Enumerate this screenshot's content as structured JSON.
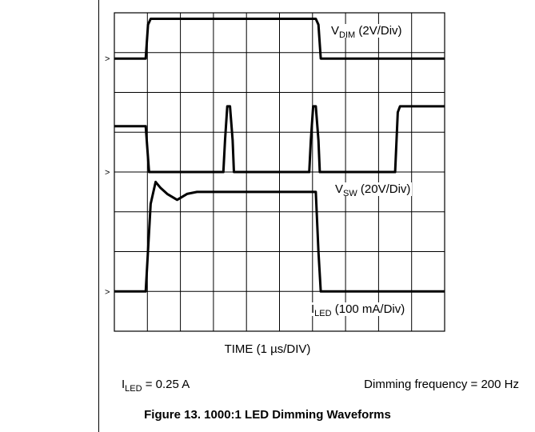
{
  "chart_data": {
    "type": "line",
    "xlabel": "TIME (1 µs/DIV)",
    "grid": true,
    "divisions": {
      "x": 10,
      "y": 8
    },
    "series": [
      {
        "name": "V_DIM",
        "scale": "2V/Div",
        "unit_div": "div",
        "x": [
          0,
          0.95,
          1.02,
          1.1,
          6.1,
          6.18,
          6.25,
          10
        ],
        "y": [
          6.85,
          6.85,
          7.7,
          7.85,
          7.85,
          7.7,
          6.85,
          6.85
        ]
      },
      {
        "name": "V_SW",
        "scale": "20V/Div",
        "x": [
          0,
          0.95,
          1.05,
          3.3,
          3.35,
          3.42,
          3.5,
          3.58,
          3.62,
          5.9,
          5.95,
          6.02,
          6.1,
          6.18,
          6.22,
          8.5,
          8.58,
          8.65,
          10
        ],
        "y": [
          5.15,
          5.15,
          4.0,
          4.0,
          4.8,
          5.65,
          5.65,
          4.8,
          4.0,
          4.0,
          4.8,
          5.65,
          5.65,
          4.8,
          4.0,
          4.0,
          5.5,
          5.65,
          5.65
        ]
      },
      {
        "name": "I_LED",
        "scale": "100 mA/Div",
        "x": [
          0,
          0.95,
          1.1,
          1.25,
          1.4,
          1.6,
          1.9,
          2.2,
          2.5,
          3.0,
          6.1,
          6.18,
          6.25,
          10
        ],
        "y": [
          1.0,
          1.0,
          3.2,
          3.75,
          3.6,
          3.45,
          3.3,
          3.45,
          3.5,
          3.5,
          3.5,
          2.0,
          1.0,
          1.0
        ]
      }
    ],
    "ground_markers": [
      {
        "channel": "V_DIM",
        "level_div": 6.85
      },
      {
        "channel": "V_SW",
        "level_div": 4.0
      },
      {
        "channel": "I_LED",
        "level_div": 1.0
      }
    ]
  },
  "labels": {
    "vdim_main": "V",
    "vdim_sub": "DIM",
    "vdim_scale": " (2V/Div)",
    "vsw_main": "V",
    "vsw_sub": "SW",
    "vsw_scale": " (20V/Div)",
    "iled_main": "I",
    "iled_sub": "LED",
    "iled_scale": " (100 mA/Div)",
    "marker": ">"
  },
  "notes": {
    "time_axis": "TIME (1 µs/DIV)",
    "iled_main": "I",
    "iled_sub": "LED",
    "iled_value": " = 0.25 A",
    "frequency": "Dimming frequency = 200 Hz"
  },
  "caption": "Figure 13. 1000:1 LED Dimming Waveforms"
}
